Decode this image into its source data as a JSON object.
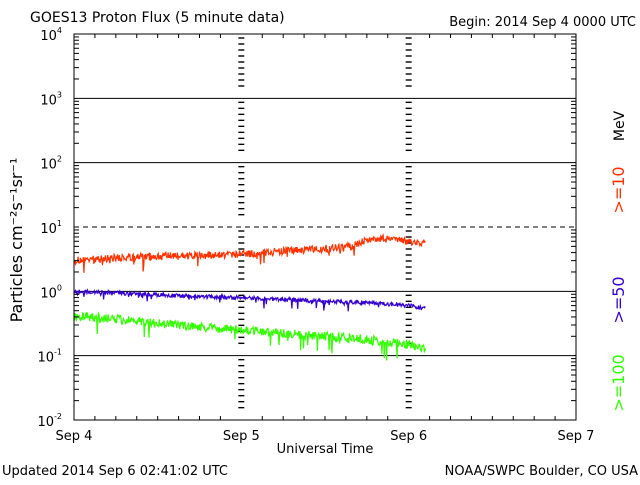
{
  "header": {
    "title": "GOES13 Proton Flux (5 minute data)",
    "begin": "Begin: 2014 Sep 4 0000 UTC"
  },
  "footer": {
    "updated": "Updated 2014 Sep  6 02:41:02 UTC",
    "credit": "NOAA/SWPC Boulder, CO USA"
  },
  "colors": {
    "series_10": "#ff3300",
    "series_50": "#3300cc",
    "series_100": "#33ff00",
    "axis": "#000000"
  },
  "chart_data": {
    "type": "line",
    "title": "GOES13 Proton Flux (5 minute data)",
    "xlabel": "Universal Time",
    "ylabel": "Particles cm⁻²s⁻¹sr⁻¹",
    "yscale": "log",
    "ylim": [
      0.01,
      10000
    ],
    "xlim": [
      0,
      3
    ],
    "x_units": "days since 2014 Sep 4 0000 UTC",
    "x_ticks": [
      {
        "value": 0,
        "label": "Sep 4"
      },
      {
        "value": 1,
        "label": "Sep 5"
      },
      {
        "value": 2,
        "label": "Sep 6"
      },
      {
        "value": 3,
        "label": "Sep 7"
      }
    ],
    "y_ticks": [
      {
        "value": 10000,
        "base": "10",
        "exp": "4"
      },
      {
        "value": 1000,
        "base": "10",
        "exp": "3"
      },
      {
        "value": 100,
        "base": "10",
        "exp": "2"
      },
      {
        "value": 10,
        "base": "10",
        "exp": "1"
      },
      {
        "value": 1,
        "base": "10",
        "exp": "0"
      },
      {
        "value": 0.1,
        "base": "10",
        "exp": "-1"
      },
      {
        "value": 0.01,
        "base": "10",
        "exp": "-2"
      }
    ],
    "threshold": {
      "value": 10,
      "style": "dashed"
    },
    "legend_units": "MeV",
    "series": [
      {
        "name": ">=10",
        "color": "#ff3300",
        "noise": 0.12,
        "points": [
          [
            0,
            3.0
          ],
          [
            0.25,
            3.3
          ],
          [
            0.5,
            3.5
          ],
          [
            0.75,
            3.6
          ],
          [
            1.0,
            3.8
          ],
          [
            1.25,
            4.2
          ],
          [
            1.5,
            4.6
          ],
          [
            1.65,
            5.0
          ],
          [
            1.75,
            6.3
          ],
          [
            1.85,
            6.6
          ],
          [
            2.0,
            5.9
          ],
          [
            2.1,
            5.6
          ]
        ]
      },
      {
        "name": ">=50",
        "color": "#3300cc",
        "noise": 0.06,
        "points": [
          [
            0,
            1.0
          ],
          [
            0.25,
            0.95
          ],
          [
            0.5,
            0.88
          ],
          [
            0.75,
            0.83
          ],
          [
            1.0,
            0.8
          ],
          [
            1.25,
            0.75
          ],
          [
            1.5,
            0.7
          ],
          [
            1.75,
            0.67
          ],
          [
            2.0,
            0.6
          ],
          [
            2.1,
            0.55
          ]
        ]
      },
      {
        "name": ">=100",
        "color": "#33ff00",
        "noise": 0.14,
        "points": [
          [
            0,
            0.42
          ],
          [
            0.25,
            0.37
          ],
          [
            0.5,
            0.32
          ],
          [
            0.75,
            0.28
          ],
          [
            1.0,
            0.25
          ],
          [
            1.25,
            0.22
          ],
          [
            1.5,
            0.2
          ],
          [
            1.75,
            0.18
          ],
          [
            2.0,
            0.15
          ],
          [
            2.1,
            0.13
          ]
        ]
      }
    ]
  }
}
